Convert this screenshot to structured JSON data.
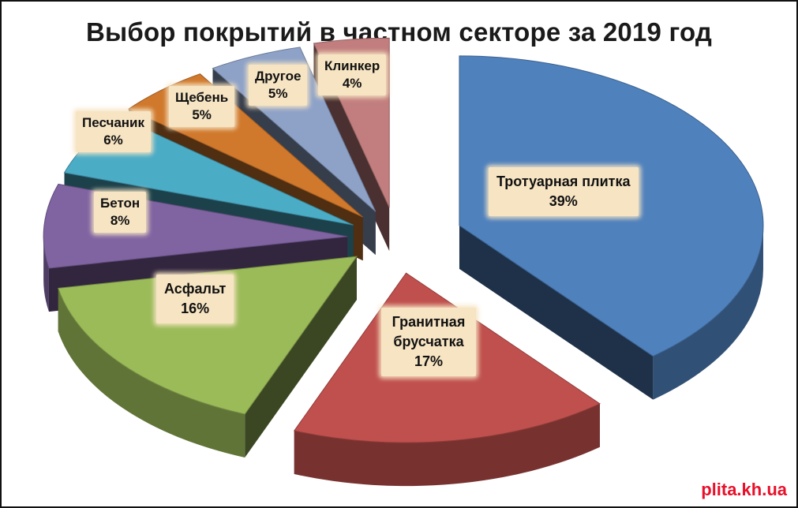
{
  "chart_data": {
    "type": "pie",
    "title": "Выбор покрытий в частном секторе за 2019 год",
    "slices": [
      {
        "name": "Тротуарная плитка",
        "value": 39,
        "label": "39%",
        "color": "#4f81bd"
      },
      {
        "name": "Гранитная брусчатка",
        "value": 17,
        "label": "17%",
        "color": "#c0504d"
      },
      {
        "name": "Асфальт",
        "value": 16,
        "label": "16%",
        "color": "#9bbb59"
      },
      {
        "name": "Бетон",
        "value": 8,
        "label": "8%",
        "color": "#8064a2"
      },
      {
        "name": "Песчаник",
        "value": 6,
        "label": "6%",
        "color": "#4bacc6"
      },
      {
        "name": "Щебень",
        "value": 5,
        "label": "5%",
        "color": "#d0782c"
      },
      {
        "name": "Другое",
        "value": 5,
        "label": "5%",
        "color": "#8ea2c8"
      },
      {
        "name": "Клинкер",
        "value": 4,
        "label": "4%",
        "color": "#c27e7e"
      }
    ],
    "legend": "none",
    "data_labels": "name and percent"
  },
  "watermark": "plita.kh.ua"
}
